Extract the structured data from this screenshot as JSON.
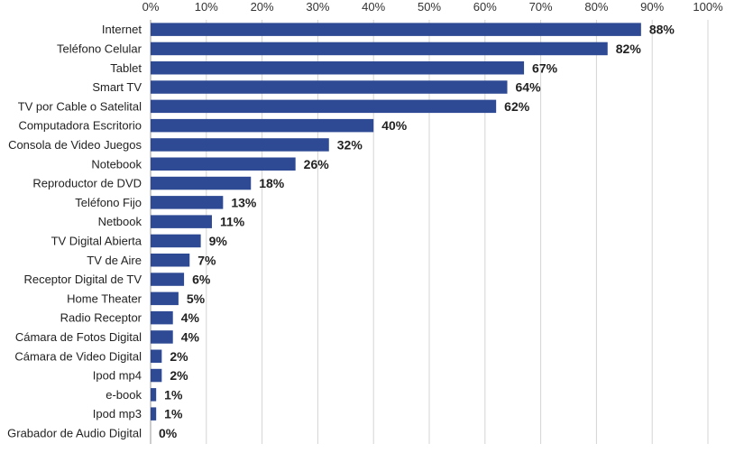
{
  "chart_data": {
    "type": "bar",
    "orientation": "horizontal",
    "title": "",
    "xlabel": "",
    "ylabel": "",
    "xlim": [
      0,
      100
    ],
    "ticks": [
      "0%",
      "10%",
      "20%",
      "30%",
      "40%",
      "50%",
      "60%",
      "70%",
      "80%",
      "90%",
      "100%"
    ],
    "grid": true,
    "bar_color": "#2e4a94",
    "categories": [
      "Internet",
      "Teléfono Celular",
      "Tablet",
      "Smart TV",
      "TV por Cable o Satelital",
      "Computadora Escritorio",
      "Consola de Video Juegos",
      "Notebook",
      "Reproductor de DVD",
      "Teléfono Fijo",
      "Netbook",
      "TV Digital Abierta",
      "TV de Aire",
      "Receptor Digital de TV",
      "Home Theater",
      "Radio Receptor",
      "Cámara de Fotos Digital",
      "Cámara de Video Digital",
      "Ipod mp4",
      "e-book",
      "Ipod mp3",
      "Grabador de Audio Digital"
    ],
    "values": [
      88,
      82,
      67,
      64,
      62,
      40,
      32,
      26,
      18,
      13,
      11,
      9,
      7,
      6,
      5,
      4,
      4,
      2,
      2,
      1,
      1,
      0
    ],
    "value_labels": [
      "88%",
      "82%",
      "67%",
      "64%",
      "62%",
      "40%",
      "32%",
      "26%",
      "18%",
      "13%",
      "11%",
      "9%",
      "7%",
      "6%",
      "5%",
      "4%",
      "4%",
      "2%",
      "2%",
      "1%",
      "1%",
      "0%"
    ]
  }
}
